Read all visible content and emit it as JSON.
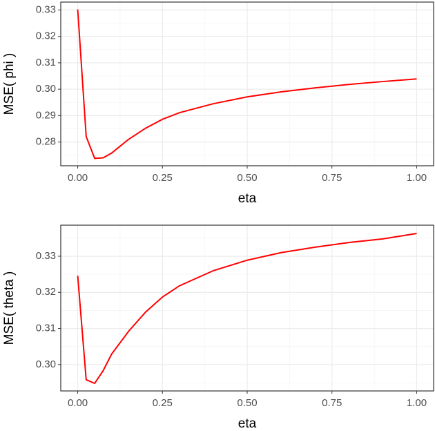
{
  "chart_data": [
    {
      "type": "line",
      "x_label": "eta",
      "y_label": "MSE( phi )",
      "x": [
        0,
        0.025,
        0.05,
        0.075,
        0.1,
        0.125,
        0.15,
        0.2,
        0.25,
        0.3,
        0.4,
        0.5,
        0.6,
        0.7,
        0.8,
        0.9,
        1.0
      ],
      "series": [
        {
          "name": "MSE( phi )",
          "color": "#ff0000",
          "values": [
            0.3302,
            0.2821,
            0.2738,
            0.274,
            0.2758,
            0.2784,
            0.281,
            0.2852,
            0.2886,
            0.2911,
            0.2945,
            0.2971,
            0.299,
            0.3005,
            0.3018,
            0.3029,
            0.3039
          ]
        }
      ],
      "xlim": [
        -0.05,
        1.05
      ],
      "xticks": [
        {
          "value": 0,
          "label": "0.00"
        },
        {
          "value": 0.25,
          "label": "0.25"
        },
        {
          "value": 0.5,
          "label": "0.50"
        },
        {
          "value": 0.75,
          "label": "0.75"
        },
        {
          "value": 1,
          "label": "1.00"
        }
      ],
      "ylim": [
        0.271,
        0.333
      ],
      "yticks": [
        {
          "value": 0.28,
          "label": "0.28"
        },
        0.29,
        {
          "value": 0.3,
          "label": "0.30"
        },
        0.31,
        0.32,
        0.33
      ],
      "grid": true
    },
    {
      "type": "line",
      "x_label": "eta",
      "y_label": "MSE( theta )",
      "x": [
        0,
        0.025,
        0.05,
        0.075,
        0.1,
        0.15,
        0.2,
        0.25,
        0.3,
        0.4,
        0.5,
        0.6,
        0.7,
        0.8,
        0.9,
        1.0
      ],
      "series": [
        {
          "name": "MSE( theta )",
          "color": "#ff0000",
          "values": [
            0.3246,
            0.2958,
            0.2948,
            0.2983,
            0.3029,
            0.3092,
            0.3145,
            0.3187,
            0.3218,
            0.326,
            0.3289,
            0.331,
            0.3325,
            0.3338,
            0.3348,
            0.3363
          ]
        }
      ],
      "xlim": [
        -0.05,
        1.05
      ],
      "xticks": [
        {
          "value": 0,
          "label": "0.00"
        },
        {
          "value": 0.25,
          "label": "0.25"
        },
        {
          "value": 0.5,
          "label": "0.50"
        },
        {
          "value": 0.75,
          "label": "0.75"
        },
        {
          "value": 1,
          "label": "1.00"
        }
      ],
      "ylim": [
        0.2927,
        0.3386
      ],
      "yticks": [
        {
          "value": 0.3,
          "label": "0.30"
        },
        0.31,
        0.32,
        0.33
      ],
      "grid": true
    }
  ]
}
